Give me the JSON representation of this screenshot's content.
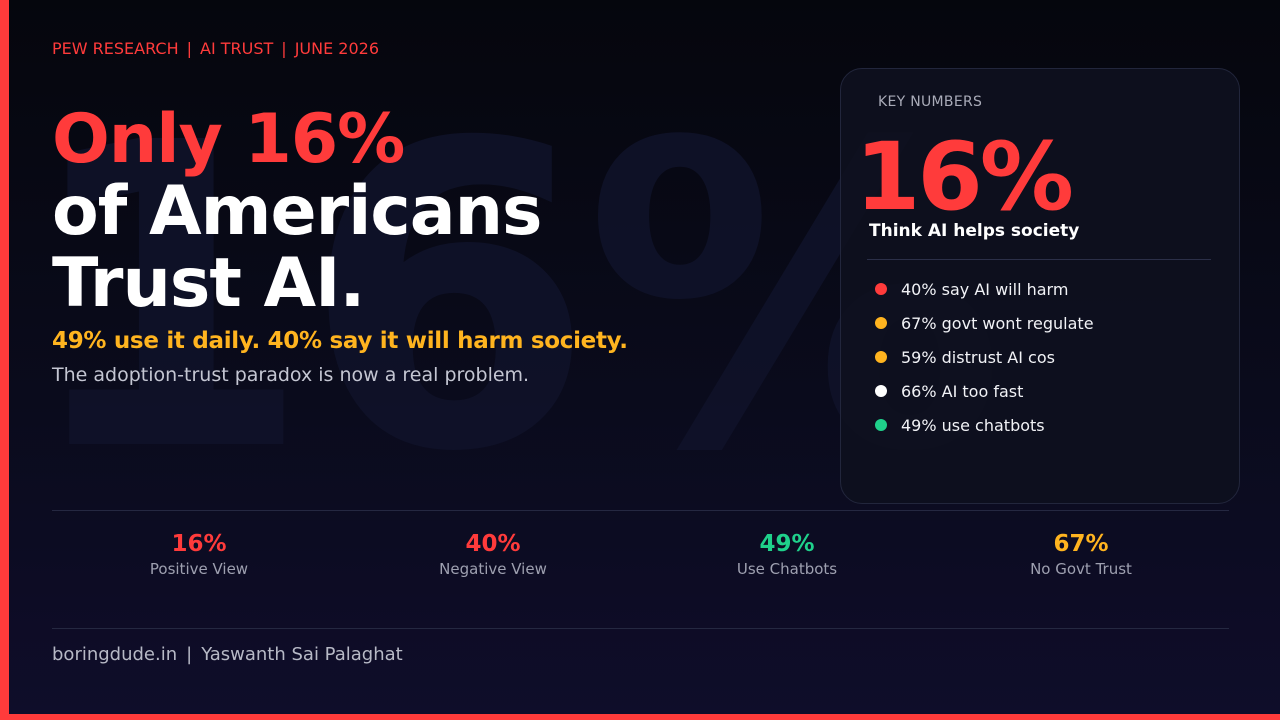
{
  "source": {
    "org": "PEW RESEARCH",
    "topic": "AI TRUST",
    "date": "JUNE 2026",
    "separator": "|"
  },
  "watermark": "16%",
  "hero": {
    "line1": "Only 16%",
    "line2": "of Americans",
    "line3": "Trust AI."
  },
  "subhead": "49% use it daily. 40% say it will harm society.",
  "subline": "The adoption-trust paradox is now a real problem.",
  "card": {
    "label": "KEY NUMBERS",
    "big_value": "16%",
    "caption": "Think AI helps society",
    "items": [
      {
        "text": "40% say AI will harm",
        "color": "#ff3b3b"
      },
      {
        "text": "67% govt wont regulate",
        "color": "#ffb41f"
      },
      {
        "text": "59% distrust AI cos",
        "color": "#ffb41f"
      },
      {
        "text": "66% AI too fast",
        "color": "#ffffff"
      },
      {
        "text": "49% use chatbots",
        "color": "#1fd18b"
      }
    ]
  },
  "metrics": [
    {
      "value": "16%",
      "label": "Positive View",
      "color": "#ff3b3b"
    },
    {
      "value": "40%",
      "label": "Negative View",
      "color": "#ff3b3b"
    },
    {
      "value": "49%",
      "label": "Use Chatbots",
      "color": "#1fd18b"
    },
    {
      "value": "67%",
      "label": "No Govt Trust",
      "color": "#ffb41f"
    }
  ],
  "footer": {
    "site": "boringdude.in",
    "separator": "|",
    "author": "Yaswanth Sai Palaghat"
  },
  "colors": {
    "accent": "#ff3b3b",
    "highlight": "#ffb41f",
    "positive": "#1fd18b",
    "background": "#0a0b1c"
  }
}
